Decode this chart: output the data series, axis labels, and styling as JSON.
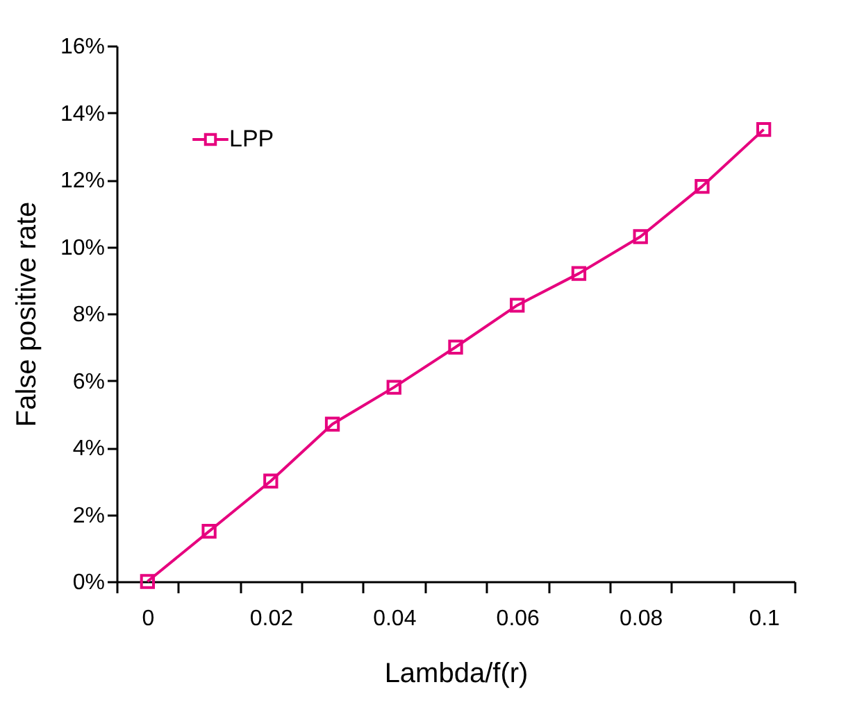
{
  "chart_data": {
    "type": "line",
    "xlabel": "Lambda/f(r)",
    "ylabel": "False positive rate",
    "categories": [
      "0",
      null,
      "0.02",
      null,
      "0.04",
      null,
      "0.06",
      null,
      "0.08",
      null,
      "0.1"
    ],
    "series": [
      {
        "name": "LPP",
        "color": "#e6007e",
        "values": [
          0,
          1.5,
          3.0,
          4.7,
          5.8,
          7.0,
          8.25,
          9.2,
          10.3,
          11.8,
          13.5
        ]
      }
    ],
    "ylim": [
      0,
      16
    ],
    "yticks": [
      {
        "value": 0,
        "label": "0%"
      },
      {
        "value": 2,
        "label": "2%"
      },
      {
        "value": 4,
        "label": "4%"
      },
      {
        "value": 6,
        "label": "6%"
      },
      {
        "value": 8,
        "label": "8%"
      },
      {
        "value": 10,
        "label": "10%"
      },
      {
        "value": 12,
        "label": "12%"
      },
      {
        "value": 14,
        "label": "14%"
      },
      {
        "value": 16,
        "label": "16%"
      }
    ],
    "grid": false,
    "legend": "top left",
    "marker": "square",
    "line_style": "solid"
  }
}
